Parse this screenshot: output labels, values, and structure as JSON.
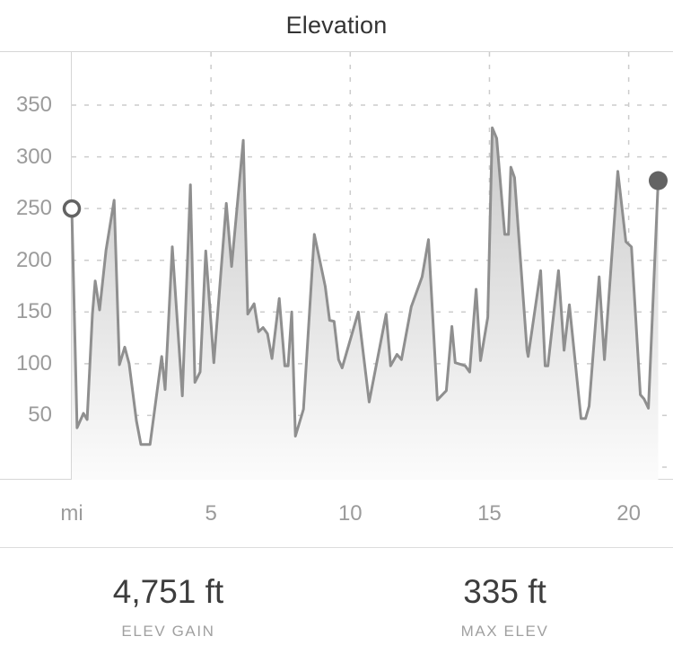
{
  "title": "Elevation",
  "colors": {
    "line": "#8f8f8f",
    "area_top": "#c7c7c7",
    "area_bottom": "#fbfbfb",
    "marker": "#636363",
    "marker_open_fill": "#ffffff",
    "grid": "#cccccc",
    "axis_line": "#d6d6d6",
    "axis_text": "#9b9b9b",
    "title_text": "#333333",
    "stat_value_text": "#3d3d3d",
    "stat_label_text": "#a0a0a0"
  },
  "chart_data": {
    "type": "area",
    "title": "Elevation",
    "xlabel": "mi",
    "ylabel": "ft",
    "x_unit_label": "mi",
    "x_ticks": [
      5,
      10,
      15,
      20
    ],
    "y_ticks": [
      50,
      100,
      150,
      200,
      250,
      300,
      350
    ],
    "xlim": [
      0,
      21.6
    ],
    "ylim": [
      0,
      403
    ],
    "grid": "dashed",
    "legend": "none",
    "markers": {
      "start": {
        "x": 0,
        "y": 250,
        "style": "open-circle"
      },
      "end": {
        "x": 21.06,
        "y": 277,
        "style": "filled-circle"
      }
    },
    "series": [
      {
        "name": "elevation-profile",
        "x": [
          0,
          0.19,
          0.42,
          0.55,
          0.74,
          0.84,
          1.0,
          1.23,
          1.52,
          1.71,
          1.9,
          2.06,
          2.32,
          2.48,
          2.81,
          3.23,
          3.35,
          3.61,
          3.97,
          4.26,
          4.42,
          4.61,
          4.81,
          5.1,
          5.55,
          5.74,
          6.16,
          6.32,
          6.55,
          6.71,
          6.87,
          7.03,
          7.19,
          7.45,
          7.65,
          7.77,
          7.9,
          8.03,
          8.32,
          8.71,
          9.1,
          9.26,
          9.42,
          9.58,
          9.71,
          10.29,
          10.68,
          11.29,
          11.45,
          11.68,
          11.84,
          12.19,
          12.58,
          12.81,
          13.13,
          13.45,
          13.65,
          13.77,
          14.13,
          14.29,
          14.52,
          14.68,
          14.94,
          15.1,
          15.26,
          15.55,
          15.68,
          15.77,
          15.9,
          16.35,
          16.39,
          16.84,
          17.0,
          17.1,
          17.48,
          17.68,
          17.87,
          18.29,
          18.45,
          18.58,
          18.94,
          19.13,
          19.61,
          19.9,
          20.1,
          20.42,
          20.55,
          20.71,
          21.06
        ],
        "y": [
          250,
          38,
          52,
          46,
          148,
          180,
          152,
          210,
          258,
          99,
          116,
          100,
          45,
          22,
          22,
          107,
          75,
          213,
          69,
          273,
          82,
          92,
          209,
          101,
          255,
          194,
          316,
          148,
          158,
          131,
          135,
          129,
          105,
          163,
          98,
          98,
          150,
          30,
          56,
          225,
          175,
          142,
          141,
          104,
          96,
          150,
          63,
          148,
          98,
          109,
          104,
          155,
          184,
          220,
          65,
          74,
          136,
          101,
          98,
          92,
          172,
          103,
          145,
          328,
          318,
          225,
          225,
          290,
          280,
          113,
          107,
          190,
          98,
          98,
          190,
          113,
          157,
          47,
          47,
          59,
          184,
          104,
          286,
          218,
          213,
          70,
          66,
          57,
          277
        ]
      }
    ]
  },
  "stats": [
    {
      "value": "4,751 ft",
      "label": "ELEV GAIN"
    },
    {
      "value": "335 ft",
      "label": "MAX ELEV"
    }
  ]
}
